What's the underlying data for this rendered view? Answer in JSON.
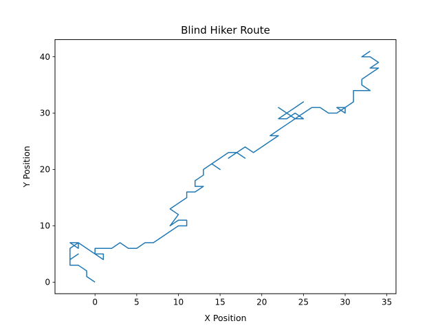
{
  "chart_data": {
    "type": "line",
    "title": "Blind Hiker Route",
    "xlabel": "X Position",
    "ylabel": "Y Position",
    "xlim": [
      -4.8,
      36.1
    ],
    "ylim": [
      -2.05,
      43.05
    ],
    "xticks": [
      0,
      5,
      10,
      15,
      20,
      25,
      30,
      35
    ],
    "yticks": [
      0,
      10,
      20,
      30,
      40
    ],
    "grid": false,
    "color": "#1f77b4",
    "series": [
      {
        "x": [
          0,
          -1,
          -1,
          -2,
          -3,
          -3,
          -2,
          -3,
          -3,
          -2,
          -3,
          -2,
          -2,
          -1,
          0,
          1,
          1,
          0,
          1,
          1,
          0,
          0,
          1,
          2,
          3,
          4,
          5,
          6,
          7,
          8,
          9,
          10,
          11,
          11,
          10,
          9,
          10,
          9,
          10,
          11,
          11,
          12,
          13,
          12,
          12,
          13,
          13,
          14,
          15,
          14,
          15,
          16,
          17,
          16,
          17,
          18,
          17,
          18,
          19,
          20,
          21,
          22,
          21,
          22,
          23,
          24,
          23,
          24,
          23,
          22,
          23,
          24,
          25,
          24,
          23,
          22,
          23,
          24,
          25,
          24,
          25,
          26,
          27,
          28,
          29,
          30,
          30,
          29,
          30,
          31,
          31,
          32,
          33,
          32,
          32,
          33,
          34,
          33,
          34,
          33,
          32,
          33
        ],
        "y": [
          0,
          1,
          2,
          3,
          3,
          4,
          5,
          4,
          6,
          7,
          7,
          6,
          7,
          6,
          5,
          4,
          5,
          5,
          4,
          5,
          5,
          6,
          6,
          6,
          7,
          6,
          6,
          7,
          7,
          8,
          9,
          10,
          10,
          11,
          11,
          10,
          12,
          13,
          14,
          15,
          16,
          16,
          17,
          17,
          18,
          19,
          20,
          21,
          20,
          21,
          22,
          23,
          23,
          22,
          23,
          22,
          23,
          24,
          23,
          24,
          25,
          26,
          26,
          27,
          28,
          29,
          30,
          31,
          30,
          31,
          30,
          31,
          32,
          31,
          30,
          29,
          29,
          30,
          29,
          29,
          30,
          31,
          31,
          30,
          30,
          31,
          30,
          31,
          31,
          32,
          34,
          34,
          34,
          35,
          36,
          37,
          38,
          38,
          39,
          40,
          40,
          41
        ]
      }
    ]
  }
}
